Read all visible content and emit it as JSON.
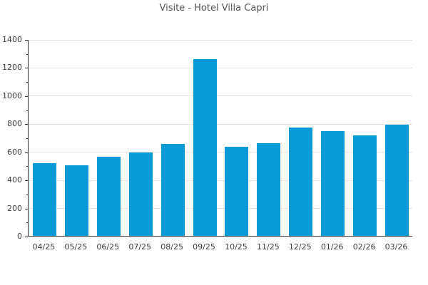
{
  "chart_data": {
    "type": "bar",
    "title": "Visite - Hotel Villa Capri",
    "categories": [
      "04/25",
      "05/25",
      "06/25",
      "07/25",
      "08/25",
      "09/25",
      "10/25",
      "11/25",
      "12/25",
      "01/26",
      "02/26",
      "03/26"
    ],
    "values": [
      515,
      500,
      565,
      595,
      655,
      1260,
      635,
      662,
      772,
      745,
      715,
      790
    ],
    "xlabel": "",
    "ylabel": "",
    "ylim": [
      0,
      1400
    ],
    "yticks": [
      0,
      200,
      400,
      600,
      800,
      1000,
      1200,
      1400
    ],
    "y_major_step": 200,
    "y_minor_step": 100,
    "grid": "horizontal-major-only",
    "legend": "none",
    "colors": {
      "bar": "#0a9ad7",
      "grid": "#e5e5e5",
      "axis": "#333333",
      "tick_text": "#3d3d3d",
      "title_text": "#555555",
      "background": "#ffffff"
    }
  }
}
